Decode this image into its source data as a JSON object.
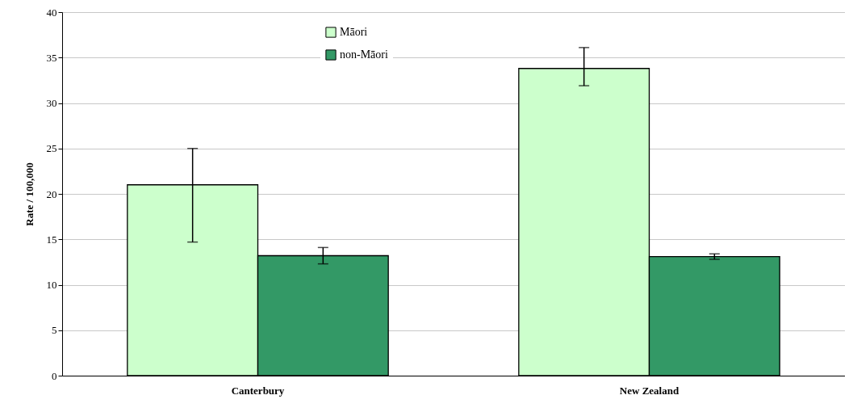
{
  "chart_data": {
    "type": "bar",
    "ylabel": "Rate / 100,000",
    "categories": [
      "Canterbury",
      "New Zealand"
    ],
    "series": [
      {
        "name": "Māori",
        "color": "#ccffcc",
        "values": [
          21,
          33.8
        ],
        "errors": [
          [
            14.7,
            25
          ],
          [
            31.9,
            36.1
          ]
        ]
      },
      {
        "name": "non-Māori",
        "color": "#339966",
        "values": [
          13.2,
          13.1
        ],
        "errors": [
          [
            12.3,
            14.1
          ],
          [
            12.8,
            13.4
          ]
        ]
      }
    ],
    "ylim": [
      0,
      40
    ],
    "yticks": [
      0,
      5,
      10,
      15,
      20,
      25,
      30,
      35,
      40
    ],
    "grid": "y",
    "legend": "top"
  }
}
